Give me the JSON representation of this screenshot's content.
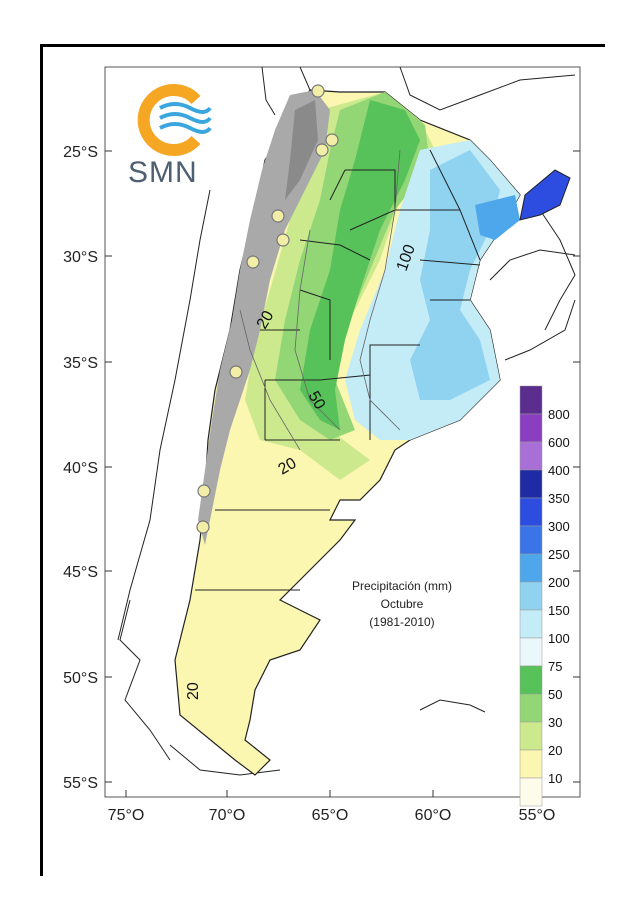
{
  "logo": {
    "text": "SMN"
  },
  "caption": {
    "line1": "Precipitación (mm)",
    "line2": "Octubre",
    "line3": "(1981-2010)"
  },
  "y_ticks": [
    "25°S",
    "30°S",
    "35°S",
    "40°S",
    "45°S",
    "50°S",
    "55°S"
  ],
  "x_ticks": [
    "75°O",
    "70°O",
    "65°O",
    "60°O",
    "55°O"
  ],
  "legend": {
    "labels": [
      "800",
      "600",
      "400",
      "350",
      "300",
      "250",
      "200",
      "150",
      "100",
      "75",
      "50",
      "30",
      "20",
      "10"
    ],
    "colors": [
      "#5b2d8e",
      "#8a3fc0",
      "#a86fd6",
      "#1f2aa5",
      "#2c4de0",
      "#3a74e6",
      "#4ea7ea",
      "#8fd3f1",
      "#c4ecf7",
      "#eaf8fb",
      "#57c15a",
      "#93d676",
      "#cde98e",
      "#fbf6b0",
      "#fdfbea"
    ]
  },
  "contour_labels": [
    "100",
    "50",
    "20",
    "20",
    "20"
  ],
  "station_count": 9,
  "colors": {
    "mountains": "#a9a9a9",
    "dry": "#fbf6b0",
    "light_green": "#cde98e",
    "green": "#93d676",
    "dark_green": "#57c15a",
    "light_blue": "#c4ecf7",
    "blue": "#8fd3f1",
    "mid_blue": "#4ea7ea",
    "deep_blue": "#2c4de0",
    "logo_orange": "#f5a623",
    "logo_blue": "#3aa6dd"
  }
}
